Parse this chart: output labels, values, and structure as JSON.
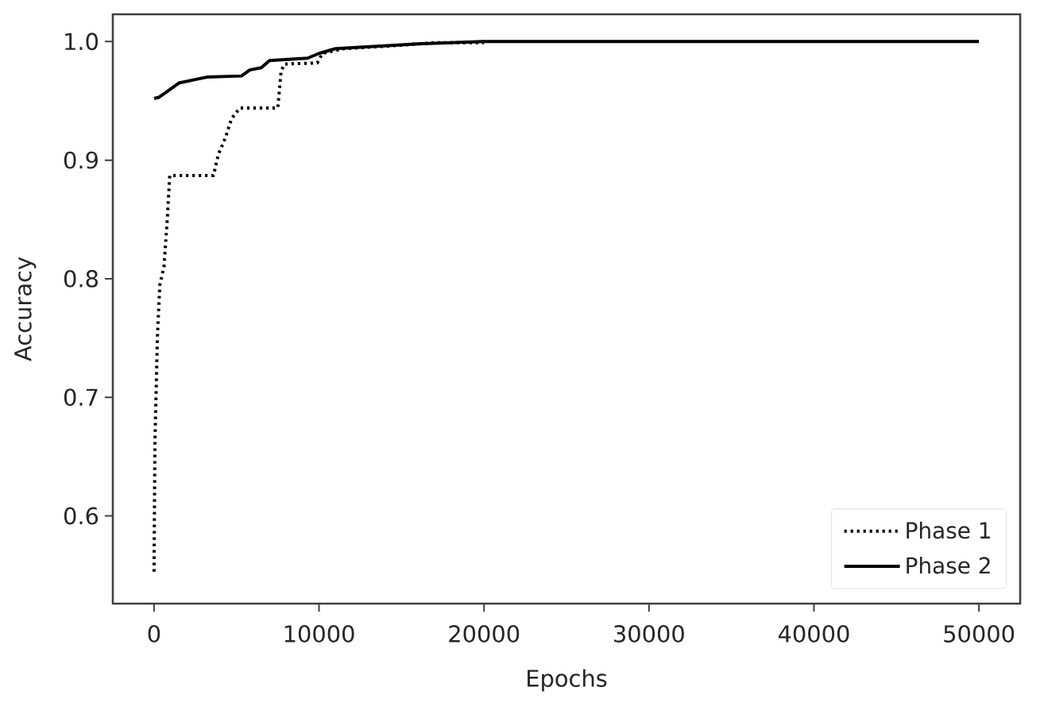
{
  "chart_data": {
    "type": "line",
    "xlabel": "Epochs",
    "ylabel": "Accuracy",
    "xlim": [
      -2500,
      52500
    ],
    "ylim": [
      0.526,
      1.023
    ],
    "xticks": [
      0,
      10000,
      20000,
      30000,
      40000,
      50000
    ],
    "yticks": [
      0.6,
      0.7,
      0.8,
      0.9,
      {
        "value": 1,
        "label": "1.0"
      }
    ],
    "legend": "bottom right",
    "series": [
      {
        "name": "Phase 1",
        "color": "#000000",
        "line_style": "dotted",
        "x": [
          0,
          50,
          200,
          350,
          600,
          800,
          950,
          3600,
          3900,
          4300,
          4700,
          5200,
          7500,
          7700,
          7900,
          9900,
          10200,
          11500,
          14000,
          17000,
          20000
        ],
        "values": [
          0.553,
          0.66,
          0.75,
          0.795,
          0.81,
          0.85,
          0.887,
          0.887,
          0.905,
          0.918,
          0.935,
          0.944,
          0.944,
          0.975,
          0.981,
          0.982,
          0.99,
          0.994,
          0.996,
          0.999,
          0.999
        ]
      },
      {
        "name": "Phase 2",
        "color": "#000000",
        "line_style": "solid",
        "x": [
          0,
          300,
          800,
          1500,
          2500,
          3200,
          5300,
          5800,
          6500,
          7000,
          9300,
          10000,
          11000,
          13500,
          16000,
          20000,
          50000
        ],
        "values": [
          0.952,
          0.953,
          0.958,
          0.965,
          0.968,
          0.97,
          0.971,
          0.976,
          0.978,
          0.984,
          0.986,
          0.99,
          0.994,
          0.996,
          0.998,
          1.0,
          1.0
        ]
      }
    ]
  }
}
